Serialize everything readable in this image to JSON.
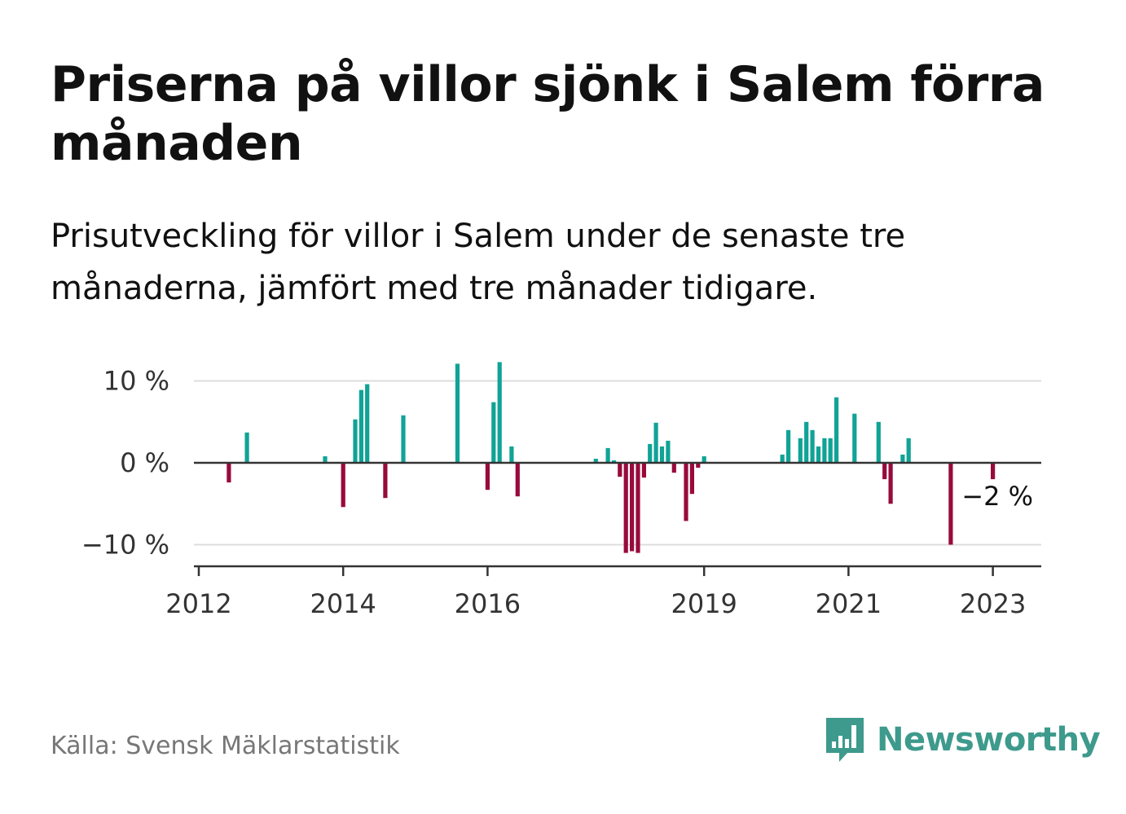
{
  "title": "Priserna på villor sjönk i Salem förra månaden",
  "subtitle": "Prisutveckling för villor i Salem under de senaste tre månaderna, jämfört med tre månader tidigare.",
  "source": "Källa: Svensk Mäklarstatistik",
  "brand": {
    "name": "Newsworthy",
    "color": "#3d9a8c",
    "icon": "bar-chart-speech-bubble-icon"
  },
  "colors": {
    "positive": "#10a396",
    "negative": "#990a3c",
    "grid": "#dddddd",
    "axis": "#333333"
  },
  "chart_data": {
    "type": "bar",
    "title": "",
    "xlabel": "",
    "ylabel": "",
    "ylim": [
      -12.7,
      12.7
    ],
    "xlim": [
      "2012-01",
      "2023-08"
    ],
    "yticks": [
      {
        "value": 10,
        "label": "10 %"
      },
      {
        "value": 0,
        "label": "0 %"
      },
      {
        "value": -10,
        "label": "−10 %"
      }
    ],
    "xticks": [
      "2012",
      "2014",
      "2016",
      "2019",
      "2021",
      "2023"
    ],
    "grid": true,
    "last_label": "−2 %",
    "series": [
      {
        "values": [
          [
            "2012-06",
            -2.4
          ],
          [
            "2012-09",
            3.7
          ],
          [
            "2013-10",
            0.8
          ],
          [
            "2014-01",
            -5.4
          ],
          [
            "2014-03",
            5.3
          ],
          [
            "2014-04",
            8.9
          ],
          [
            "2014-05",
            9.6
          ],
          [
            "2014-08",
            -4.3
          ],
          [
            "2014-11",
            5.8
          ],
          [
            "2015-08",
            12.1
          ],
          [
            "2016-01",
            -3.3
          ],
          [
            "2016-02",
            7.4
          ],
          [
            "2016-03",
            12.3
          ],
          [
            "2016-05",
            2.0
          ],
          [
            "2016-06",
            -4.1
          ],
          [
            "2017-07",
            0.5
          ],
          [
            "2017-09",
            1.8
          ],
          [
            "2017-10",
            0.3
          ],
          [
            "2017-11",
            -1.7
          ],
          [
            "2017-12",
            -11.0
          ],
          [
            "2018-01",
            -10.8
          ],
          [
            "2018-02",
            -11.0
          ],
          [
            "2018-03",
            -1.8
          ],
          [
            "2018-04",
            2.3
          ],
          [
            "2018-05",
            4.9
          ],
          [
            "2018-06",
            2.0
          ],
          [
            "2018-07",
            2.7
          ],
          [
            "2018-08",
            -1.2
          ],
          [
            "2018-10",
            -7.1
          ],
          [
            "2018-11",
            -3.8
          ],
          [
            "2018-12",
            -0.6
          ],
          [
            "2019-01",
            0.8
          ],
          [
            "2020-02",
            1.0
          ],
          [
            "2020-03",
            4.0
          ],
          [
            "2020-05",
            3.0
          ],
          [
            "2020-06",
            5.0
          ],
          [
            "2020-07",
            4.0
          ],
          [
            "2020-08",
            2.0
          ],
          [
            "2020-09",
            3.0
          ],
          [
            "2020-10",
            3.0
          ],
          [
            "2020-11",
            8.0
          ],
          [
            "2021-02",
            6.0
          ],
          [
            "2021-06",
            5.0
          ],
          [
            "2021-07",
            -2.0
          ],
          [
            "2021-08",
            -5.0
          ],
          [
            "2021-10",
            1.0
          ],
          [
            "2021-11",
            3.0
          ],
          [
            "2022-06",
            -10.0
          ],
          [
            "2023-01",
            -2.0
          ]
        ]
      }
    ]
  }
}
